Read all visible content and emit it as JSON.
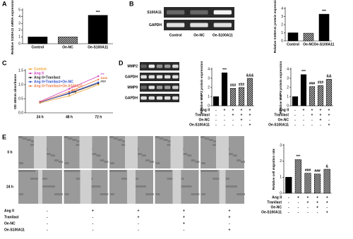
{
  "panel_labels": [
    "A",
    "B",
    "C",
    "D",
    "E"
  ],
  "blots": [
    {
      "rows": [
        "S100A11",
        "GAPDH"
      ],
      "columns": [
        "Control",
        "Oe-NC",
        "Oe-S100A11"
      ]
    },
    {
      "rows": [
        "MMP2",
        "GAPDH",
        "MMP9",
        "GAPDH"
      ]
    }
  ],
  "scratch": {
    "rows": [
      "0 h",
      "24 h"
    ],
    "conditions": [
      {
        "name": "Ang II",
        "signs": [
          "-",
          "+",
          "+",
          "+",
          "+"
        ]
      },
      {
        "name": "Tranilast",
        "signs": [
          "-",
          "-",
          "+",
          "+",
          "+"
        ]
      },
      {
        "name": "Oe-NC",
        "signs": [
          "-",
          "-",
          "-",
          "+",
          "-"
        ]
      },
      {
        "name": "Oe-S100A11",
        "signs": [
          "-",
          "-",
          "-",
          "-",
          "+"
        ]
      }
    ]
  },
  "chart_data": [
    {
      "type": "bar",
      "y_label": "Relative S100A11 mRNA expression",
      "categories": [
        "Control",
        "Oe-NC",
        "Oe-S100A11"
      ],
      "values": [
        1.0,
        1.0,
        4.2
      ],
      "annotations": [
        null,
        null,
        "***"
      ],
      "color": "#000000",
      "bar_styles": [
        "solid",
        "hatch",
        "solid"
      ],
      "ylim": [
        0,
        5
      ],
      "yticks": [
        0,
        1,
        2,
        3,
        4,
        5
      ]
    },
    {
      "type": "bar",
      "y_label": "Relative S100A11 protein expression",
      "categories": [
        "Control",
        "Oe-NC",
        "Oe-S100A11"
      ],
      "values": [
        1.0,
        0.95,
        3.3
      ],
      "annotations": [
        null,
        null,
        "***"
      ],
      "color": "#000000",
      "bar_styles": [
        "solid",
        "hatch",
        "solid"
      ],
      "ylim": [
        0,
        4
      ],
      "yticks": [
        0,
        1,
        2,
        3,
        4
      ]
    },
    {
      "type": "line",
      "y_label": "OD 450nm absorbance",
      "categories": [
        "24 h",
        "48 h",
        "72 h"
      ],
      "ylim": [
        0,
        1.5
      ],
      "yticks": [
        {
          "value": 0,
          "label": "0.0"
        },
        {
          "value": 0.5,
          "label": "0.5"
        },
        {
          "value": 1,
          "label": "1.0"
        },
        {
          "value": 1.5,
          "label": "1.5"
        }
      ],
      "series": [
        {
          "name": "Control",
          "color": "#f0a030",
          "values": [
            0.35,
            0.6,
            1.0
          ]
        },
        {
          "name": "Ang II",
          "color": "#d040c0",
          "values": [
            0.4,
            0.85,
            1.3
          ],
          "annotations": [
            null,
            "***",
            "***"
          ]
        },
        {
          "name": "Ang II+Tranilast",
          "color": "#202020",
          "values": [
            0.38,
            0.68,
            1.05
          ],
          "annotations": [
            null,
            "###",
            "###"
          ]
        },
        {
          "name": "Ang II+Tranilast+Oe-NC",
          "color": "#3050d0",
          "values": [
            0.37,
            0.7,
            1.08
          ]
        },
        {
          "name": "Ang II+Tranilast+Oe-S100A11",
          "color": "#f07840",
          "values": [
            0.38,
            0.75,
            1.18
          ],
          "annotations": [
            null,
            "&&&",
            "&&&"
          ]
        }
      ]
    },
    {
      "type": "bar",
      "y_label": "Relative MMP2 protein expression",
      "values": [
        1.0,
        3.6,
        1.9,
        2.0,
        3.0
      ],
      "annotations": [
        null,
        "***",
        "###",
        "###",
        "&&&"
      ],
      "color": "#000000",
      "bar_styles": [
        "solid",
        "solid",
        "hatch",
        "hatch",
        "hatch"
      ],
      "ylim": [
        0,
        4
      ],
      "yticks": [
        0,
        1,
        2,
        3,
        4
      ],
      "conditions": [
        {
          "name": "Ang II",
          "signs": [
            "-",
            "+",
            "+",
            "+",
            "+"
          ]
        },
        {
          "name": "Tranilast",
          "signs": [
            "-",
            "-",
            "+",
            "+",
            "+"
          ]
        },
        {
          "name": "Oe-NC",
          "signs": [
            "-",
            "-",
            "-",
            "+",
            "-"
          ]
        },
        {
          "name": "Oe-S100A11",
          "signs": [
            "-",
            "-",
            "-",
            "-",
            "+"
          ]
        }
      ]
    },
    {
      "type": "bar",
      "y_label": "Relative MMP9 protein expression",
      "values": [
        1.0,
        3.4,
        2.1,
        2.2,
        2.9
      ],
      "annotations": [
        null,
        "***",
        "###",
        "###",
        "&&"
      ],
      "color": "#000000",
      "bar_styles": [
        "solid",
        "solid",
        "hatch",
        "hatch",
        "hatch"
      ],
      "ylim": [
        0,
        4
      ],
      "yticks": [
        0,
        1,
        2,
        3,
        4
      ],
      "conditions": [
        {
          "name": "Ang II",
          "signs": [
            "-",
            "+",
            "+",
            "+",
            "+"
          ]
        },
        {
          "name": "Tranilast",
          "signs": [
            "-",
            "-",
            "+",
            "+",
            "+"
          ]
        },
        {
          "name": "Oe-NC",
          "signs": [
            "-",
            "-",
            "-",
            "+",
            "-"
          ]
        },
        {
          "name": "Oe-S100A11",
          "signs": [
            "-",
            "-",
            "-",
            "-",
            "+"
          ]
        }
      ]
    },
    {
      "type": "bar",
      "y_label": "Relative cell migration rate",
      "values": [
        1.0,
        2.1,
        1.25,
        1.2,
        1.5
      ],
      "annotations": [
        null,
        "***",
        "###",
        "###",
        "&"
      ],
      "color": "#000000",
      "bar_styles": [
        "solid",
        "hatch",
        "hatch",
        "hatch",
        "hatch"
      ],
      "ylim": [
        0,
        3
      ],
      "yticks": [
        0,
        1,
        2,
        3
      ],
      "conditions": [
        {
          "name": "Ang II",
          "signs": [
            "-",
            "+",
            "+",
            "+",
            "+"
          ]
        },
        {
          "name": "Tranilast",
          "signs": [
            "-",
            "-",
            "+",
            "+",
            "+"
          ]
        },
        {
          "name": "Oe-NC",
          "signs": [
            "-",
            "-",
            "-",
            "+",
            "-"
          ]
        },
        {
          "name": "Oe-S100A11",
          "signs": [
            "-",
            "-",
            "-",
            "-",
            "+"
          ]
        }
      ]
    }
  ]
}
